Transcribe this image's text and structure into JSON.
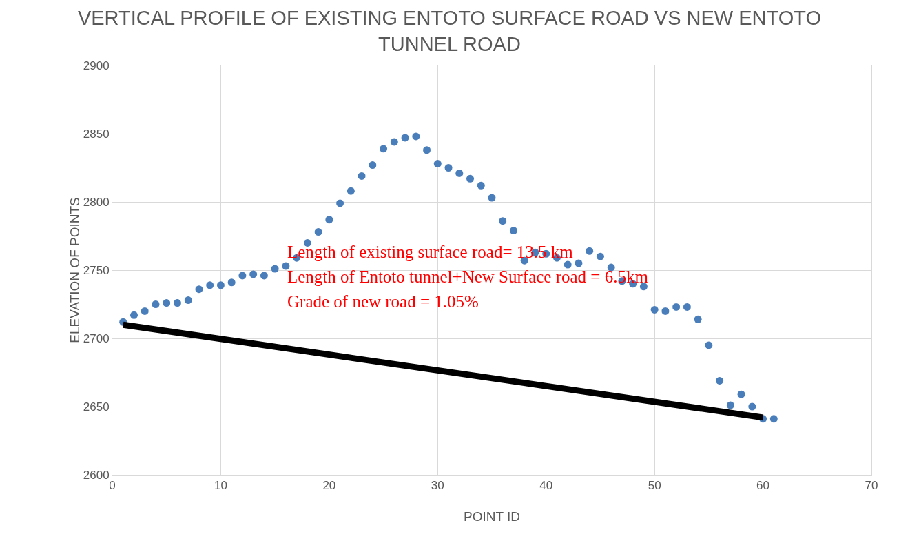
{
  "chart_data": {
    "type": "scatter",
    "title": "VERTICAL PROFILE OF EXISTING ENTOTO SURFACE ROAD VS NEW ENTOTO TUNNEL ROAD",
    "xlabel": "POINT ID",
    "ylabel": "ELEVATION OF POINTS",
    "x": [
      1,
      2,
      3,
      4,
      5,
      6,
      7,
      8,
      9,
      10,
      11,
      12,
      13,
      14,
      15,
      16,
      17,
      18,
      19,
      20,
      21,
      22,
      23,
      24,
      25,
      26,
      27,
      28,
      29,
      30,
      31,
      32,
      33,
      34,
      35,
      36,
      37,
      38,
      39,
      40,
      41,
      42,
      43,
      44,
      45,
      46,
      47,
      48,
      49,
      50,
      51,
      52,
      53,
      54,
      55,
      56,
      57,
      58,
      59,
      60,
      61
    ],
    "series": [
      {
        "marker": "circle",
        "color": "#4a7ebb",
        "values": [
          2712,
          2717,
          2720,
          2725,
          2726,
          2726,
          2728,
          2736,
          2739,
          2739,
          2741,
          2746,
          2747,
          2746,
          2751,
          2753,
          2759,
          2770,
          2778,
          2787,
          2799,
          2808,
          2819,
          2827,
          2839,
          2844,
          2847,
          2848,
          2838,
          2828,
          2825,
          2821,
          2817,
          2812,
          2803,
          2786,
          2779,
          2757,
          2763,
          2762,
          2759,
          2754,
          2755,
          2764,
          2760,
          2752,
          2742,
          2740,
          2738,
          2721,
          2720,
          2723,
          2723,
          2714,
          2695,
          2669,
          2651,
          2659,
          2650,
          2641,
          2641
        ]
      },
      {
        "type": "line",
        "marker": "none",
        "color": "#000000",
        "x": [
          1,
          60
        ],
        "values": [
          2710,
          2642
        ]
      }
    ],
    "annotations": [
      "Length of existing surface road= 13.5 km",
      "Length of Entoto tunnel+New Surface road = 6.5km",
      "Grade of new road = 1.05%"
    ],
    "xlim": [
      0,
      70
    ],
    "xticks": [
      0,
      10,
      20,
      30,
      40,
      50,
      60,
      70
    ],
    "ylim": [
      2600,
      2900
    ],
    "yticks": [
      2600,
      2650,
      2700,
      2750,
      2800,
      2850,
      2900
    ],
    "grid": true,
    "line_style": "solid"
  }
}
